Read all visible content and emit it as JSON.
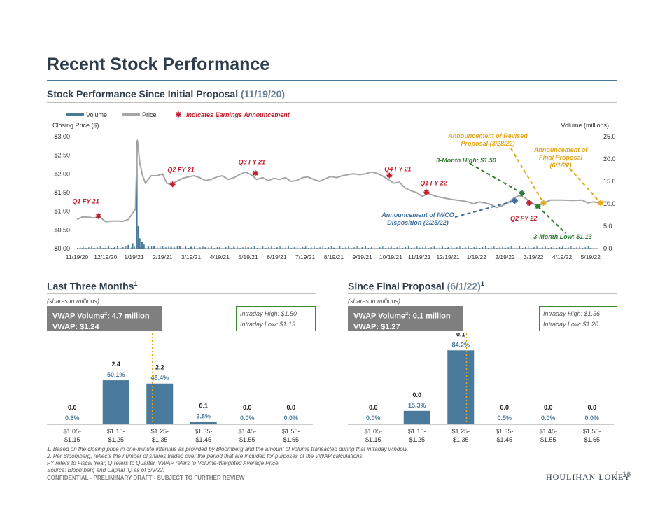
{
  "page": {
    "title": "Recent Stock Performance",
    "subtitle_main": "Stock Performance Since Initial Proposal",
    "subtitle_date": "(11/19/20)",
    "left_section_main": "Last Three Months",
    "left_section_sup": "1",
    "right_section_main": "Since Final Proposal",
    "right_section_date": "(6/1/22)",
    "right_section_sup": "1",
    "shares_note": "(shares in millions)",
    "left_vwap_volume_label": "VWAP Volume",
    "left_vwap_volume_sup": "2",
    "left_vwap_volume_value": ": 4.7 million",
    "left_vwap": "VWAP: $1.24",
    "left_high": "Intraday High: $1.50",
    "left_low": "Intraday Low: $1.13",
    "right_vwap_volume_label": "VWAP Volume",
    "right_vwap_volume_sup": "2",
    "right_vwap_volume_value": ": 0.1 million",
    "right_vwap": "VWAP: $1.27",
    "right_high": "Intraday High: $1.36",
    "right_low": "Intraday Low: $1.20",
    "footnote1": "1. Based on the closing price in one-minute intervals as provided by Bloomberg and the amount of volume transacted during that intraday window.",
    "footnote2": "2. Per Bloomberg, reflects the number of shares traded over the period that are included for purposes of the VWAP calculations.",
    "footnote3": "FY refers to Fiscal Year, Q refers to Quarter, VWAP refers to Volume-Weighted Average Price.",
    "footnote4": "Source: Bloomberg and Capital IQ as of 6/9/22.",
    "confidential": "CONFIDENTIAL - PRELIMINARY DRAFT - SUBJECT TO FURTHER REVIEW",
    "logo": "HOULIHAN LOKEY",
    "page_number": "16"
  },
  "colors": {
    "navy": "#2f3d4c",
    "steel": "#4a7a9b",
    "price": "#a6a6a6",
    "red": "#c0202f",
    "green": "#2e7d32",
    "gold": "#e3a71b",
    "blue_dash": "#3b6ea0"
  },
  "chart_data": [
    {
      "type": "line",
      "title": "Stock Performance Since Initial Proposal (11/19/20)",
      "ylabel": "Closing Price ($)",
      "y2label": "Volume (millions)",
      "ylim": [
        0,
        3
      ],
      "y2lim": [
        0,
        25
      ],
      "y_ticks": [
        "$3.00",
        "$2.50",
        "$2.00",
        "$1.50",
        "$1.00",
        "$0.50",
        "$0.00"
      ],
      "y2_ticks": [
        "25.0",
        "20.0",
        "15.0",
        "10.0",
        "5.0",
        "0.0"
      ],
      "x_ticks": [
        "11/19/20",
        "12/19/20",
        "1/19/21",
        "2/19/21",
        "3/19/21",
        "4/19/21",
        "5/19/21",
        "6/19/21",
        "7/19/21",
        "8/19/21",
        "9/19/21",
        "10/19/21",
        "11/19/21",
        "12/19/21",
        "1/19/22",
        "2/19/22",
        "3/19/22",
        "4/19/22",
        "5/19/22"
      ],
      "legend": {
        "volume": "Volume",
        "price": "Price",
        "earnings": "Indicates Earnings Announcement"
      },
      "price_series": [
        {
          "x": 0,
          "y": 0.78
        },
        {
          "x": 0.2,
          "y": 0.85
        },
        {
          "x": 0.4,
          "y": 0.84
        },
        {
          "x": 0.6,
          "y": 0.82
        },
        {
          "x": 0.8,
          "y": 0.85
        },
        {
          "x": 1.0,
          "y": 0.72
        },
        {
          "x": 1.3,
          "y": 0.74
        },
        {
          "x": 1.6,
          "y": 0.73
        },
        {
          "x": 1.8,
          "y": 0.78
        },
        {
          "x": 1.95,
          "y": 0.95
        },
        {
          "x": 2.05,
          "y": 1.05
        },
        {
          "x": 2.12,
          "y": 2.9
        },
        {
          "x": 2.2,
          "y": 2.3
        },
        {
          "x": 2.3,
          "y": 1.95
        },
        {
          "x": 2.4,
          "y": 1.75
        },
        {
          "x": 2.5,
          "y": 1.85
        },
        {
          "x": 2.6,
          "y": 1.95
        },
        {
          "x": 2.8,
          "y": 1.95
        },
        {
          "x": 3.0,
          "y": 2.0
        },
        {
          "x": 3.15,
          "y": 1.75
        },
        {
          "x": 3.3,
          "y": 1.72
        },
        {
          "x": 3.5,
          "y": 1.8
        },
        {
          "x": 3.7,
          "y": 1.88
        },
        {
          "x": 3.9,
          "y": 1.92
        },
        {
          "x": 4.1,
          "y": 1.95
        },
        {
          "x": 4.3,
          "y": 1.9
        },
        {
          "x": 4.5,
          "y": 1.82
        },
        {
          "x": 4.7,
          "y": 1.85
        },
        {
          "x": 4.9,
          "y": 1.92
        },
        {
          "x": 5.1,
          "y": 1.95
        },
        {
          "x": 5.3,
          "y": 1.85
        },
        {
          "x": 5.5,
          "y": 1.9
        },
        {
          "x": 5.7,
          "y": 1.98
        },
        {
          "x": 5.9,
          "y": 2.05
        },
        {
          "x": 6.1,
          "y": 1.98
        },
        {
          "x": 6.3,
          "y": 1.85
        },
        {
          "x": 6.5,
          "y": 1.9
        },
        {
          "x": 6.7,
          "y": 1.82
        },
        {
          "x": 6.9,
          "y": 1.88
        },
        {
          "x": 7.1,
          "y": 1.85
        },
        {
          "x": 7.3,
          "y": 1.9
        },
        {
          "x": 7.5,
          "y": 1.8
        },
        {
          "x": 7.7,
          "y": 1.82
        },
        {
          "x": 7.9,
          "y": 1.9
        },
        {
          "x": 8.1,
          "y": 1.92
        },
        {
          "x": 8.3,
          "y": 1.85
        },
        {
          "x": 8.5,
          "y": 1.8
        },
        {
          "x": 8.7,
          "y": 1.87
        },
        {
          "x": 8.9,
          "y": 1.93
        },
        {
          "x": 9.1,
          "y": 1.9
        },
        {
          "x": 9.3,
          "y": 1.95
        },
        {
          "x": 9.5,
          "y": 1.98
        },
        {
          "x": 9.7,
          "y": 2.0
        },
        {
          "x": 9.9,
          "y": 1.98
        },
        {
          "x": 10.1,
          "y": 2.0
        },
        {
          "x": 10.3,
          "y": 2.05
        },
        {
          "x": 10.5,
          "y": 2.02
        },
        {
          "x": 10.7,
          "y": 1.95
        },
        {
          "x": 10.9,
          "y": 1.85
        },
        {
          "x": 11.1,
          "y": 1.75
        },
        {
          "x": 11.3,
          "y": 1.78
        },
        {
          "x": 11.5,
          "y": 1.62
        },
        {
          "x": 11.7,
          "y": 1.55
        },
        {
          "x": 11.9,
          "y": 1.5
        },
        {
          "x": 12.1,
          "y": 1.4
        },
        {
          "x": 12.3,
          "y": 1.48
        },
        {
          "x": 12.5,
          "y": 1.42
        },
        {
          "x": 12.7,
          "y": 1.38
        },
        {
          "x": 12.9,
          "y": 1.35
        },
        {
          "x": 13.1,
          "y": 1.32
        },
        {
          "x": 13.3,
          "y": 1.3
        },
        {
          "x": 13.5,
          "y": 1.28
        },
        {
          "x": 13.7,
          "y": 1.25
        },
        {
          "x": 13.9,
          "y": 1.2
        },
        {
          "x": 14.1,
          "y": 1.25
        },
        {
          "x": 14.3,
          "y": 1.22
        },
        {
          "x": 14.5,
          "y": 1.18
        },
        {
          "x": 14.7,
          "y": 1.1
        },
        {
          "x": 14.9,
          "y": 1.15
        },
        {
          "x": 15.1,
          "y": 1.22
        },
        {
          "x": 15.3,
          "y": 1.35
        },
        {
          "x": 15.5,
          "y": 1.42
        },
        {
          "x": 15.7,
          "y": 1.36
        },
        {
          "x": 15.85,
          "y": 1.25
        },
        {
          "x": 16.0,
          "y": 1.2
        },
        {
          "x": 16.15,
          "y": 1.13
        },
        {
          "x": 16.35,
          "y": 1.22
        },
        {
          "x": 16.6,
          "y": 1.3
        },
        {
          "x": 17.0,
          "y": 1.3
        },
        {
          "x": 17.4,
          "y": 1.29
        },
        {
          "x": 17.7,
          "y": 1.3
        },
        {
          "x": 17.9,
          "y": 1.22
        },
        {
          "x": 18.1,
          "y": 1.25
        },
        {
          "x": 18.3,
          "y": 1.22
        },
        {
          "x": 18.5,
          "y": 1.25
        },
        {
          "x": 18.65,
          "y": 1.24
        }
      ],
      "volume_series": [
        {
          "x": 2.1,
          "y": 24.0
        },
        {
          "x": 2.15,
          "y": 5.0
        },
        {
          "x": 2.2,
          "y": 2.3
        },
        {
          "x": 2.28,
          "y": 1.5
        },
        {
          "x": 2.35,
          "y": 0.9
        },
        {
          "x": 1.6,
          "y": 0.3
        },
        {
          "x": 1.8,
          "y": 0.8
        },
        {
          "x": 1.95,
          "y": 1.2
        },
        {
          "x": 2.5,
          "y": 0.6
        },
        {
          "x": 2.7,
          "y": 0.5
        },
        {
          "x": 3.0,
          "y": 0.6
        },
        {
          "x": 3.3,
          "y": 0.4
        },
        {
          "x": 3.6,
          "y": 0.5
        },
        {
          "x": 4.0,
          "y": 0.4
        },
        {
          "x": 4.5,
          "y": 0.3
        },
        {
          "x": 5.0,
          "y": 0.3
        },
        {
          "x": 5.5,
          "y": 0.4
        },
        {
          "x": 6.0,
          "y": 0.3
        },
        {
          "x": 7.0,
          "y": 0.2
        },
        {
          "x": 8.0,
          "y": 0.2
        },
        {
          "x": 9.0,
          "y": 0.2
        },
        {
          "x": 10.0,
          "y": 0.3
        },
        {
          "x": 11.0,
          "y": 0.2
        },
        {
          "x": 12.0,
          "y": 0.2
        },
        {
          "x": 13.0,
          "y": 0.2
        },
        {
          "x": 14.0,
          "y": 0.2
        },
        {
          "x": 15.0,
          "y": 0.2
        },
        {
          "x": 16.0,
          "y": 0.2
        },
        {
          "x": 17.0,
          "y": 0.1
        },
        {
          "x": 18.0,
          "y": 0.1
        },
        {
          "x": 0.2,
          "y": 0.1
        },
        {
          "x": 0.6,
          "y": 0.1
        },
        {
          "x": 1.0,
          "y": 0.1
        },
        {
          "x": 1.3,
          "y": 0.1
        }
      ],
      "earnings_markers": [
        {
          "label": "Q1 FY 21",
          "x": 0.75,
          "y": 0.87
        },
        {
          "label": "Q2 FY 21",
          "x": 3.35,
          "y": 1.72
        },
        {
          "label": "Q3 FY 21",
          "x": 6.25,
          "y": 2.02
        },
        {
          "label": "Q4 FY 21",
          "x": 10.95,
          "y": 1.96
        },
        {
          "label": "Q1 FY 22",
          "x": 12.25,
          "y": 1.51
        },
        {
          "label": "Q2 FY 22",
          "x": 15.85,
          "y": 1.22
        }
      ],
      "other_markers": [
        {
          "label": "3-Month High: $1.50",
          "x": 15.6,
          "y": 1.48,
          "kind": "high"
        },
        {
          "label": "3-Month Low: $1.13",
          "x": 16.15,
          "y": 1.13,
          "kind": "low"
        },
        {
          "label": "Announcement of IWCO Disposition (2/25/22)",
          "x": 15.35,
          "y": 1.28,
          "kind": "iwco"
        },
        {
          "label": "Announcement of Revised Proposal (3/28/22)",
          "x": 16.35,
          "y": 1.22,
          "kind": "revised"
        },
        {
          "label": "Announcement of Final Proposal (6/1/22)",
          "x": 18.35,
          "y": 1.22,
          "kind": "final"
        }
      ]
    },
    {
      "type": "bar",
      "title": "Last Three Months",
      "categories": [
        "$1.05-\n$1.15",
        "$1.15-\n$1.25",
        "$1.25-\n$1.35",
        "$1.35-\n$1.45",
        "$1.45-\n$1.55",
        "$1.55-\n$1.65"
      ],
      "values": [
        0.0,
        2.4,
        2.2,
        0.1,
        0.0,
        0.0
      ],
      "value_labels": [
        "0.0",
        "2.4",
        "2.2",
        "0.1",
        "0.0",
        "0.0"
      ],
      "percent_labels": [
        "0.6%",
        "50.1%",
        "46.4%",
        "2.8%",
        "0.0%",
        "0.0%"
      ],
      "percent_values": [
        0.6,
        50.1,
        46.4,
        2.8,
        0.0,
        0.0
      ],
      "vwap_category_index": 1,
      "vwap": 1.24
    },
    {
      "type": "bar",
      "title": "Since Final Proposal (6/1/22)",
      "categories": [
        "$1.05-\n$1.15",
        "$1.15-\n$1.25",
        "$1.25-\n$1.35",
        "$1.35-\n$1.45",
        "$1.45-\n$1.55",
        "$1.55-\n$1.65"
      ],
      "values": [
        0.0,
        0.0,
        0.1,
        0.0,
        0.0,
        0.0
      ],
      "value_labels": [
        "0.0",
        "0.0",
        "0.1",
        "0.0",
        "0.0",
        "0.0"
      ],
      "percent_labels": [
        "0.0%",
        "15.3%",
        "84.2%",
        "0.5%",
        "0.0%",
        "0.0%"
      ],
      "percent_values": [
        0.0,
        15.3,
        84.2,
        0.5,
        0.0,
        0.0
      ],
      "vwap_category_index": 2,
      "vwap": 1.27
    }
  ]
}
